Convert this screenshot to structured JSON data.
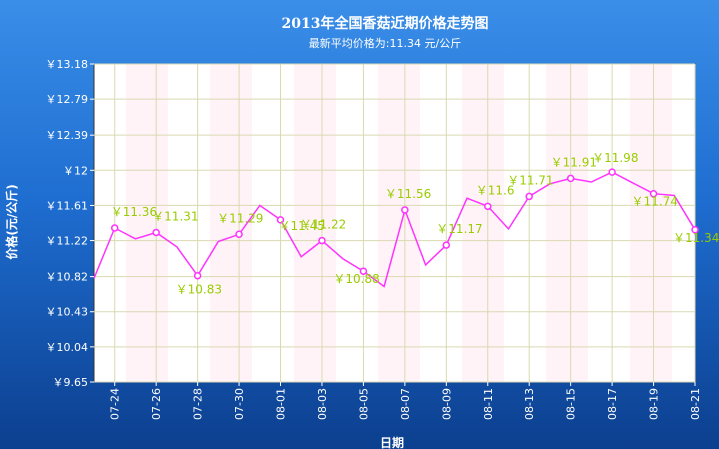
{
  "chart_data": {
    "type": "line",
    "title": "2013年全国香菇近期价格走势图",
    "subtitle": "最新平均价格为:11.34 元/公斤",
    "xlabel": "日期",
    "ylabel": "价格(元/公斤)",
    "ylim": [
      9.65,
      13.18
    ],
    "yticks": [
      "￥13.18",
      "￥12.79",
      "￥12.39",
      "￥12",
      "￥11.61",
      "￥11.22",
      "￥10.82",
      "￥10.43",
      "￥10.04",
      "￥9.65"
    ],
    "ytick_values": [
      13.18,
      12.79,
      12.39,
      12.0,
      11.61,
      11.22,
      10.82,
      10.43,
      10.04,
      9.65
    ],
    "xticks": [
      "07-24",
      "07-26",
      "07-28",
      "07-30",
      "08-01",
      "08-03",
      "08-05",
      "08-07",
      "08-09",
      "08-11",
      "08-13",
      "08-15",
      "08-17",
      "08-19",
      "08-21"
    ],
    "grid": true,
    "series": [
      {
        "values": [
          10.8,
          11.36,
          11.24,
          11.31,
          11.15,
          10.83,
          11.21,
          11.29,
          11.61,
          11.45,
          11.04,
          11.22,
          11.02,
          10.88,
          10.71,
          11.56,
          10.95,
          11.17,
          11.69,
          11.6,
          11.35,
          11.71,
          11.85,
          11.91,
          11.87,
          11.98,
          11.86,
          11.74,
          11.72,
          11.34
        ],
        "markers": [
          1,
          3,
          5,
          7,
          9,
          11,
          13,
          15,
          17,
          19,
          21,
          23,
          25,
          27,
          29
        ],
        "labels": [
          {
            "i": 1,
            "text": "￥11.36"
          },
          {
            "i": 3,
            "text": "￥11.31"
          },
          {
            "i": 5,
            "text": "￥10.83"
          },
          {
            "i": 7,
            "text": "￥11.29"
          },
          {
            "i": 9,
            "text": "￥11.45"
          },
          {
            "i": 11,
            "text": "￥11.22"
          },
          {
            "i": 13,
            "text": "￥10.88"
          },
          {
            "i": 15,
            "text": "￥11.56"
          },
          {
            "i": 17,
            "text": "￥11.17"
          },
          {
            "i": 19,
            "text": "￥11.6"
          },
          {
            "i": 21,
            "text": "￥11.71"
          },
          {
            "i": 23,
            "text": "￥11.91"
          },
          {
            "i": 25,
            "text": "￥11.98"
          },
          {
            "i": 27,
            "text": "￥11.74"
          },
          {
            "i": 29,
            "text": "￥11.34"
          }
        ]
      }
    ],
    "colors": {
      "line": "#ff33ff",
      "label": "#99cc00",
      "plot_bg": "#ffffff",
      "frame_bg": "#1f6fcf"
    }
  }
}
